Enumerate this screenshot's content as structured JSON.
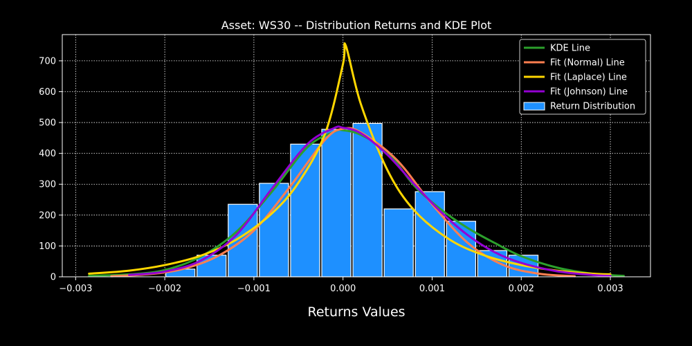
{
  "chart_data": {
    "type": "bar",
    "title": "Asset: WS30 -- Distribution Returns and KDE Plot",
    "xlabel": "Returns Values",
    "ylabel": "",
    "xlim": [
      -0.00315,
      0.00345
    ],
    "ylim": [
      0,
      785
    ],
    "x_ticks": [
      -0.003,
      -0.002,
      -0.001,
      0.0,
      0.001,
      0.002,
      0.003
    ],
    "x_tick_labels": [
      "−0.003",
      "−0.002",
      "−0.001",
      "0.000",
      "0.001",
      "0.002",
      "0.003"
    ],
    "y_ticks": [
      0,
      100,
      200,
      300,
      400,
      500,
      600,
      700
    ],
    "y_tick_labels": [
      "0",
      "100",
      "200",
      "300",
      "400",
      "500",
      "600",
      "700"
    ],
    "grid": true,
    "legend_position": "top-right",
    "histogram": {
      "name": "Return Distribution",
      "color": "#1e90ff",
      "edge_color": "#ffffff",
      "bin_edges": [
        -0.002,
        -0.00165,
        -0.0013,
        -0.00095,
        -0.0006,
        -0.00025,
        0.0001,
        0.00045,
        0.0008,
        0.00115,
        0.0015,
        0.00185,
        0.0022
      ],
      "values": [
        25,
        70,
        235,
        303,
        430,
        478,
        497,
        220,
        276,
        180,
        85,
        70
      ]
    },
    "series": [
      {
        "name": "KDE Line",
        "color": "#2ca02c",
        "x": [
          -0.00285,
          -0.0024,
          -0.002,
          -0.0016,
          -0.0012,
          -0.0008,
          -0.0004,
          -0.0001,
          0.0,
          0.0002,
          0.0005,
          0.0008,
          0.0011,
          0.0014,
          0.0017,
          0.002,
          0.0024,
          0.0028,
          0.00315
        ],
        "y": [
          3,
          8,
          22,
          65,
          145,
          275,
          420,
          470,
          475,
          460,
          405,
          295,
          218,
          158,
          110,
          67,
          30,
          10,
          3
        ]
      },
      {
        "name": "Fit (Normal) Line",
        "color": "#ff7f50",
        "x": [
          -0.0026,
          -0.0022,
          -0.0018,
          -0.0014,
          -0.001,
          -0.0006,
          -0.0002,
          0.0,
          0.0002,
          0.0006,
          0.001,
          0.0014,
          0.0018,
          0.0022,
          0.0026
        ],
        "y": [
          2,
          8,
          25,
          68,
          150,
          290,
          445,
          480,
          468,
          380,
          235,
          110,
          38,
          10,
          2
        ]
      },
      {
        "name": "Fit (Laplace) Line",
        "color": "#ffd700",
        "x": [
          -0.00285,
          -0.0024,
          -0.002,
          -0.0016,
          -0.0012,
          -0.0008,
          -0.0005,
          -0.0002,
          0.0,
          3e-05,
          0.0002,
          0.0005,
          0.0008,
          0.0012,
          0.0016,
          0.002,
          0.0024,
          0.0028,
          0.003
        ],
        "y": [
          10,
          20,
          38,
          68,
          120,
          205,
          305,
          465,
          690,
          750,
          560,
          345,
          215,
          120,
          68,
          38,
          20,
          10,
          8
        ]
      },
      {
        "name": "Fit (Johnson) Line",
        "color": "#9400d3",
        "x": [
          -0.0024,
          -0.002,
          -0.0016,
          -0.0012,
          -0.0008,
          -0.0004,
          -0.0001,
          0.0,
          0.0002,
          0.0005,
          0.0008,
          0.0011,
          0.0014,
          0.0017,
          0.002,
          0.0024,
          0.0028,
          0.003
        ],
        "y": [
          6,
          17,
          52,
          135,
          285,
          430,
          482,
          483,
          465,
          395,
          300,
          210,
          135,
          80,
          45,
          18,
          6,
          3
        ]
      }
    ]
  }
}
